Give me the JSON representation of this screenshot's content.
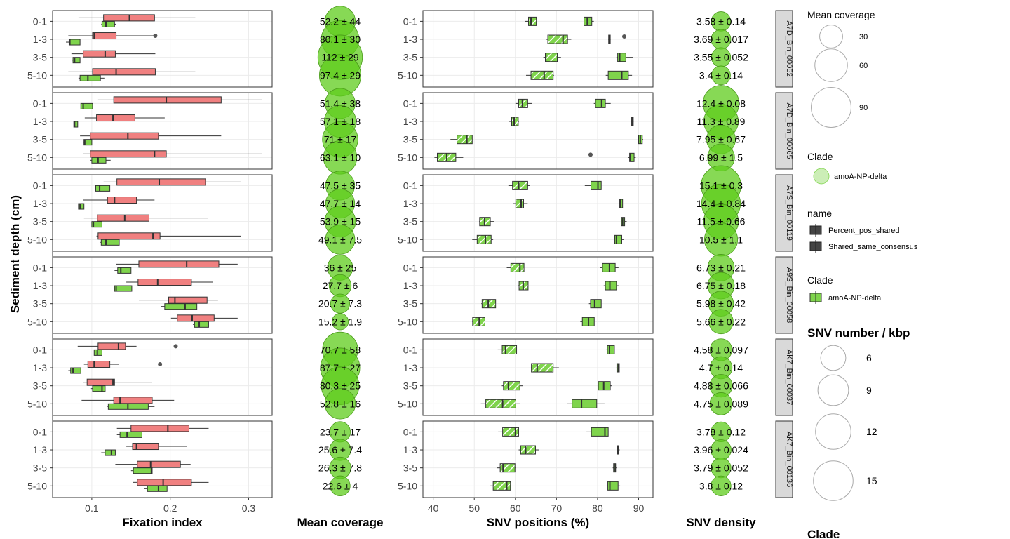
{
  "chart_data": {
    "type": "boxplot-panel-grid",
    "depths": [
      "0-1",
      "1-3",
      "3-5",
      "5-10"
    ],
    "y_axis_label": "Sediment depth (cm)",
    "columns": [
      {
        "key": "fix",
        "xlabel": "Fixation index",
        "ticks": [
          "0.1",
          "0.2",
          "0.3"
        ],
        "tick_values": [
          0.1,
          0.2,
          0.3
        ],
        "xlim": [
          0.05,
          0.33
        ]
      },
      {
        "key": "cov",
        "xlabel": "Mean coverage"
      },
      {
        "key": "pos",
        "xlabel": "SNV positions (%)",
        "ticks": [
          "40",
          "50",
          "60",
          "70",
          "80",
          "90"
        ],
        "tick_values": [
          40,
          50,
          60,
          70,
          80,
          90
        ],
        "xlim": [
          37.5,
          93.5
        ]
      },
      {
        "key": "dens",
        "xlabel": "SNV density"
      }
    ],
    "facets": [
      {
        "name": "A7D_Bin_00052",
        "fix_pink": [
          [
            0.083,
            0.115,
            0.148,
            0.18,
            0.232
          ],
          [
            0.07,
            0.101,
            0.103,
            0.131,
            0.18
          ],
          [
            0.074,
            0.089,
            0.117,
            0.13,
            0.181
          ],
          [
            0.07,
            0.101,
            0.131,
            0.181,
            0.232
          ]
        ],
        "fix_green": [
          [
            0.112,
            0.113,
            0.118,
            0.129,
            0.131
          ],
          [
            0.067,
            0.071,
            0.072,
            0.085,
            0.085
          ],
          [
            0.075,
            0.076,
            0.078,
            0.085,
            0.085
          ],
          [
            0.083,
            0.085,
            0.095,
            0.111,
            0.116
          ]
        ],
        "fix_outliers": [
          [
            1,
            0.181
          ]
        ],
        "coverage": [
          "52.2 ± 44",
          "80.1 ± 30",
          "112 ± 29",
          "97.4 ± 29"
        ],
        "coverage_mean": [
          52.2,
          80.1,
          112,
          97.4
        ],
        "pos_solid": [
          [
            76.6,
            76.7,
            77.5,
            78.6,
            79.1
          ],
          [
            82.6,
            82.7,
            82.9,
            83.1,
            83.2
          ],
          [
            84.6,
            84.9,
            85.4,
            86.9,
            88.6
          ],
          [
            82.0,
            82.6,
            85.9,
            87.5,
            88.4
          ]
        ],
        "pos_hatched": [
          [
            62.3,
            63.2,
            63.8,
            65.1,
            65.3
          ],
          [
            67.5,
            67.9,
            71.6,
            72.7,
            73.6
          ],
          [
            66.8,
            67.3,
            67.4,
            70.2,
            71.1
          ],
          [
            62.6,
            63.8,
            67.0,
            69.2,
            69.4
          ]
        ],
        "pos_outliers": [
          [
            1,
            86.5
          ]
        ],
        "density": [
          "3.58 ± 0.14",
          "3.69 ± 0.017",
          "3.55 ± 0.052",
          "3.4 ± 0.14"
        ],
        "density_mean": [
          3.58,
          3.69,
          3.55,
          3.4
        ]
      },
      {
        "name": "A7D_Bin_00065",
        "fix_pink": [
          [
            0.108,
            0.128,
            0.195,
            0.265,
            0.317
          ],
          [
            0.091,
            0.106,
            0.127,
            0.155,
            0.193
          ],
          [
            0.085,
            0.098,
            0.146,
            0.185,
            0.265
          ],
          [
            0.089,
            0.098,
            0.18,
            0.195,
            0.317
          ]
        ],
        "fix_green": [
          [
            0.086,
            0.086,
            0.089,
            0.101,
            0.101
          ],
          [
            0.077,
            0.077,
            0.078,
            0.082,
            0.082
          ],
          [
            0.089,
            0.09,
            0.091,
            0.1,
            0.1
          ],
          [
            0.098,
            0.1,
            0.108,
            0.118,
            0.124
          ]
        ],
        "fix_outliers": [],
        "coverage": [
          "51.4 ± 38",
          "57.1 ± 18",
          "71 ± 17",
          "63.1 ± 10"
        ],
        "coverage_mean": [
          51.4,
          57.1,
          71,
          63.1
        ],
        "pos_solid": [
          [
            79.1,
            79.5,
            81.0,
            81.9,
            83.2
          ],
          [
            88.2,
            88.3,
            88.5,
            88.7,
            88.8
          ],
          [
            89.8,
            90.0,
            90.4,
            90.9,
            91.1
          ],
          [
            87.4,
            87.8,
            88.0,
            88.9,
            89.3
          ]
        ],
        "pos_hatched": [
          [
            60.0,
            60.8,
            61.7,
            63.0,
            64.1
          ],
          [
            58.5,
            59.1,
            59.7,
            60.7,
            60.9
          ],
          [
            44.2,
            45.8,
            48.2,
            49.5,
            49.5
          ],
          [
            40.3,
            41.0,
            43.3,
            45.5,
            47.3
          ]
        ],
        "pos_outliers": [
          [
            3,
            78.3
          ]
        ],
        "density": [
          "12.4 ± 0.08",
          "11.3 ± 0.89",
          "7.95 ± 0.67",
          "6.99 ± 1.5"
        ],
        "density_mean": [
          12.4,
          11.3,
          7.95,
          6.99
        ]
      },
      {
        "name": "A7S_Bin_00119",
        "fix_pink": [
          [
            0.115,
            0.132,
            0.186,
            0.245,
            0.29
          ],
          [
            0.089,
            0.12,
            0.129,
            0.157,
            0.18
          ],
          [
            0.09,
            0.107,
            0.142,
            0.173,
            0.248
          ],
          [
            0.106,
            0.108,
            0.178,
            0.187,
            0.29
          ]
        ],
        "fix_green": [
          [
            0.105,
            0.105,
            0.11,
            0.123,
            0.123
          ],
          [
            0.083,
            0.083,
            0.085,
            0.09,
            0.09
          ],
          [
            0.1,
            0.1,
            0.102,
            0.113,
            0.113
          ],
          [
            0.111,
            0.112,
            0.118,
            0.135,
            0.135
          ]
        ],
        "fix_outliers": [],
        "coverage": [
          "47.5 ± 35",
          "47.7 ± 14",
          "53.9 ± 15",
          "49.1 ± 7.5"
        ],
        "coverage_mean": [
          47.5,
          47.7,
          53.9,
          49.1
        ],
        "pos_solid": [
          [
            76.9,
            78.4,
            80.1,
            80.9,
            80.9
          ],
          [
            85.3,
            85.4,
            85.6,
            86.1,
            86.1
          ],
          [
            85.7,
            85.8,
            86.1,
            86.6,
            87.1
          ],
          [
            84.2,
            84.2,
            84.6,
            85.9,
            86.4
          ]
        ],
        "pos_hatched": [
          [
            58.3,
            59.3,
            60.8,
            63.0,
            63.6
          ],
          [
            59.5,
            60.1,
            61.4,
            62.0,
            63.0
          ],
          [
            51.2,
            51.3,
            52.5,
            53.9,
            54.9
          ],
          [
            49.5,
            50.7,
            52.7,
            54.1,
            54.6
          ]
        ],
        "pos_outliers": [],
        "density": [
          "15.1 ± 0.3",
          "14.4 ± 0.84",
          "11.5 ± 0.66",
          "10.5 ± 1.1"
        ],
        "density_mean": [
          15.1,
          14.4,
          11.5,
          10.5
        ]
      },
      {
        "name": "A9S_Bin_00058",
        "fix_pink": [
          [
            0.131,
            0.16,
            0.221,
            0.262,
            0.286
          ],
          [
            0.144,
            0.159,
            0.184,
            0.227,
            0.254
          ],
          [
            0.16,
            0.198,
            0.206,
            0.247,
            0.261
          ],
          [
            0.201,
            0.209,
            0.228,
            0.256,
            0.286
          ]
        ],
        "fix_green": [
          [
            0.129,
            0.133,
            0.137,
            0.15,
            0.15
          ],
          [
            0.129,
            0.129,
            0.131,
            0.151,
            0.151
          ],
          [
            0.188,
            0.193,
            0.219,
            0.234,
            0.234
          ],
          [
            0.229,
            0.231,
            0.237,
            0.249,
            0.249
          ]
        ],
        "fix_outliers": [],
        "coverage": [
          "36 ± 25",
          "27.7 ± 6",
          "20.7 ± 7.3",
          "15.2 ± 1.9"
        ],
        "coverage_mean": [
          36,
          27.7,
          20.7,
          15.2
        ],
        "pos_solid": [
          [
            80.6,
            81.2,
            82.9,
            84.3,
            85.1
          ],
          [
            81.5,
            81.9,
            83.0,
            84.6,
            85.1
          ],
          [
            77.9,
            78.3,
            79.3,
            80.9,
            80.9
          ],
          [
            75.8,
            76.3,
            77.8,
            79.2,
            79.2
          ]
        ],
        "pos_hatched": [
          [
            57.9,
            58.9,
            61.1,
            62.1,
            62.1
          ],
          [
            60.6,
            60.9,
            61.9,
            63.1,
            63.1
          ],
          [
            51.7,
            51.9,
            53.4,
            55.2,
            55.2
          ],
          [
            49.5,
            49.6,
            51.2,
            52.6,
            52.6
          ]
        ],
        "pos_outliers": [],
        "density": [
          "6.73 ± 0.21",
          "6.75 ± 0.18",
          "5.98 ± 0.42",
          "5.66 ± 0.22"
        ],
        "density_mean": [
          6.73,
          6.75,
          5.98,
          5.66
        ]
      },
      {
        "name": "AK7_Bin_00037",
        "fix_pink": [
          [
            0.082,
            0.108,
            0.134,
            0.143,
            0.157
          ],
          [
            0.09,
            0.095,
            0.103,
            0.123,
            0.135
          ],
          [
            0.089,
            0.094,
            0.127,
            0.129,
            0.177
          ],
          [
            0.087,
            0.128,
            0.136,
            0.177,
            0.205
          ]
        ],
        "fix_green": [
          [
            0.103,
            0.103,
            0.107,
            0.113,
            0.113
          ],
          [
            0.07,
            0.073,
            0.076,
            0.086,
            0.086
          ],
          [
            0.099,
            0.101,
            0.113,
            0.117,
            0.117
          ],
          [
            0.12,
            0.121,
            0.146,
            0.172,
            0.18
          ]
        ],
        "fix_outliers": [
          [
            0,
            0.207
          ],
          [
            1,
            0.187
          ]
        ],
        "coverage": [
          "70.7 ± 58",
          "87.7 ± 27",
          "80.3 ± 25",
          "52.8 ± 16"
        ],
        "coverage_mean": [
          70.7,
          87.7,
          80.3,
          52.8
        ],
        "pos_solid": [
          [
            82.1,
            82.4,
            82.9,
            84.1,
            84.1
          ],
          [
            84.6,
            84.7,
            85.0,
            85.3,
            85.4
          ],
          [
            80.0,
            80.2,
            81.5,
            83.1,
            83.5
          ],
          [
            72.5,
            73.8,
            76.1,
            79.8,
            81.7
          ]
        ],
        "pos_hatched": [
          [
            55.7,
            56.8,
            57.6,
            60.3,
            60.3
          ],
          [
            63.8,
            63.9,
            65.3,
            69.2,
            70.6
          ],
          [
            56.7,
            57.1,
            58.3,
            61.1,
            61.8
          ],
          [
            51.6,
            52.8,
            56.9,
            60.1,
            61.1
          ]
        ],
        "pos_outliers": [],
        "density": [
          "4.58 ± 0.097",
          "4.7 ± 0.14",
          "4.88 ± 0.066",
          "4.75 ± 0.089"
        ],
        "density_mean": [
          4.58,
          4.7,
          4.88,
          4.75
        ]
      },
      {
        "name": "AK7_Bin_00136",
        "fix_pink": [
          [
            0.132,
            0.15,
            0.197,
            0.224,
            0.249
          ],
          [
            0.144,
            0.152,
            0.157,
            0.185,
            0.221
          ],
          [
            0.13,
            0.158,
            0.175,
            0.213,
            0.226
          ],
          [
            0.152,
            0.158,
            0.191,
            0.227,
            0.249
          ]
        ],
        "fix_green": [
          [
            0.132,
            0.136,
            0.145,
            0.164,
            0.164
          ],
          [
            0.112,
            0.117,
            0.125,
            0.13,
            0.13
          ],
          [
            0.15,
            0.153,
            0.176,
            0.177,
            0.177
          ],
          [
            0.167,
            0.171,
            0.185,
            0.196,
            0.196
          ]
        ],
        "fix_outliers": [],
        "coverage": [
          "23.7 ± 17",
          "25.6 ± 7.4",
          "26.3 ± 7.8",
          "22.6 ± 4"
        ],
        "coverage_mean": [
          23.7,
          25.6,
          26.3,
          22.6
        ],
        "pos_solid": [
          [
            77.3,
            78.5,
            81.8,
            82.6,
            82.6
          ],
          [
            84.8,
            84.8,
            85.0,
            85.2,
            85.4
          ],
          [
            83.7,
            83.9,
            84.3,
            84.4,
            84.6
          ],
          [
            82.3,
            82.5,
            83.0,
            85.0,
            85.5
          ]
        ],
        "pos_hatched": [
          [
            55.8,
            56.9,
            60.0,
            60.8,
            60.8
          ],
          [
            60.8,
            61.3,
            62.5,
            64.9,
            65.7
          ],
          [
            55.6,
            56.3,
            57.0,
            59.9,
            60.0
          ],
          [
            53.9,
            54.6,
            57.9,
            58.8,
            58.8
          ]
        ],
        "pos_outliers": [],
        "density": [
          "3.78 ± 0.12",
          "3.96 ± 0.024",
          "3.79 ± 0.052",
          "3.8 ± 0.12"
        ],
        "density_mean": [
          3.78,
          3.96,
          3.79,
          3.8
        ]
      }
    ],
    "colors": {
      "pink": "#f08080",
      "green": "#7fd44c",
      "bubble": "#5fcc1c",
      "hatch_line": "#ffffff",
      "strip": "#d9d9d9",
      "grid": "#ebebeb"
    },
    "legends": [
      {
        "title": "Mean coverage",
        "type": "size",
        "entries": [
          "30",
          "60",
          "90"
        ],
        "values": [
          30,
          60,
          90
        ]
      },
      {
        "title": "Clade",
        "type": "fill-point",
        "entries": [
          "amoA-NP-delta"
        ]
      },
      {
        "title": "name",
        "type": "pattern",
        "entries": [
          "Percent_pos_shared",
          "Shared_same_consensus"
        ]
      },
      {
        "title": "Clade",
        "type": "fill-box",
        "entries": [
          "amoA-NP-delta"
        ]
      },
      {
        "title": "SNV number / kbp",
        "type": "size",
        "entries": [
          "6",
          "9",
          "12",
          "15"
        ],
        "values": [
          6,
          9,
          12,
          15
        ]
      },
      {
        "title": "Clade",
        "type": "cut",
        "entries": []
      }
    ]
  }
}
